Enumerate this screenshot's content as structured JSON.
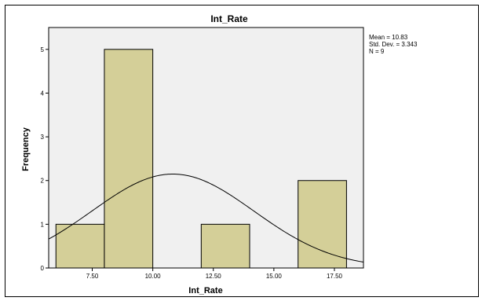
{
  "chart_data": {
    "type": "bar",
    "title": "Int_Rate",
    "xlabel": "Int_Rate",
    "ylabel": "Frequency",
    "bins": [
      {
        "from": 6.0,
        "to": 8.0,
        "count": 1
      },
      {
        "from": 8.0,
        "to": 10.0,
        "count": 5
      },
      {
        "from": 12.0,
        "to": 14.0,
        "count": 1
      },
      {
        "from": 16.0,
        "to": 18.0,
        "count": 2
      }
    ],
    "xticks": [
      {
        "value": 7.5,
        "label": "7.50"
      },
      {
        "value": 10.0,
        "label": "10.00"
      },
      {
        "value": 12.5,
        "label": "12.50"
      },
      {
        "value": 15.0,
        "label": "15.00"
      },
      {
        "value": 17.5,
        "label": "17.50"
      }
    ],
    "yticks": [
      0,
      1,
      2,
      3,
      4,
      5
    ],
    "xlim": [
      5.7,
      18.7
    ],
    "ylim": [
      0,
      5.5
    ],
    "normal_curve": {
      "mean": 10.83,
      "sd": 3.343,
      "n": 9,
      "bin_width": 2
    },
    "stats": [
      "Mean = 10.83",
      "Std. Dev. = 3.343",
      "N = 9"
    ],
    "colors": {
      "bar_fill": "#d4cf98",
      "plot_bg": "#f0f0f0",
      "line": "#000000"
    }
  }
}
